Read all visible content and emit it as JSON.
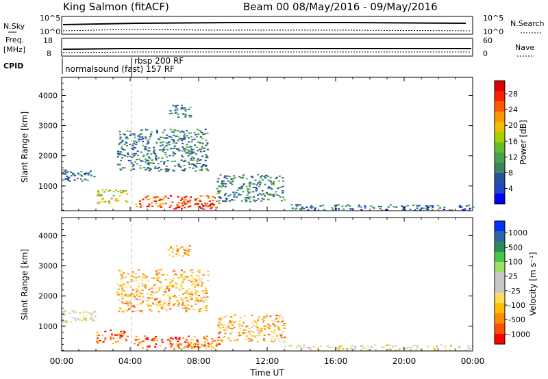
{
  "header": {
    "station": "King Salmon (fitACF)",
    "beam_info": "Beam 00  08/May/2016 - 09/May/2016"
  },
  "top_panels": {
    "nsky_label": "N.Sky",
    "nsearch_label": "N.Search",
    "noise_ticks_left": [
      "10^5",
      "10^0"
    ],
    "noise_ticks_right": [
      "10^5",
      "10^0"
    ],
    "freq_label_1": "Freq.",
    "freq_label_2": "[MHz]",
    "freq_ticks": [
      "18",
      "8"
    ],
    "nave_label": "Nave",
    "nave_ticks": [
      "60",
      "0"
    ],
    "cpid_label": "CPID",
    "cpid_1": "normalsound (fast) 157 RF",
    "cpid_2": "rbsp 200 RF"
  },
  "power_panel": {
    "ylabel": "Slant Range [km]",
    "y_ticks": [
      "4000",
      "3000",
      "2000",
      "1000"
    ],
    "colorbar_label": "Power [dB]",
    "colorbar_ticks": [
      "28",
      "24",
      "20",
      "16",
      "12",
      "8",
      "4"
    ],
    "colors": [
      "#0000ff",
      "#1e46c8",
      "#28509b",
      "#3c8264",
      "#46a050",
      "#64be28",
      "#aacd00",
      "#f0be00",
      "#ff9600",
      "#ff5a00",
      "#ff1e00",
      "#dc0000"
    ]
  },
  "velocity_panel": {
    "ylabel": "Slant Range [km]",
    "y_ticks": [
      "4000",
      "3000",
      "2000",
      "1000"
    ],
    "colorbar_label": "Velocity [m s⁻¹]",
    "colorbar_ticks": [
      "1000",
      "500",
      "100",
      "25",
      "-25",
      "-100",
      "-500",
      "-1000"
    ],
    "colors": [
      "#ff0000",
      "#ff5000",
      "#ff8c00",
      "#ffbe00",
      "#ffdc5a",
      "#c8c8c8",
      "#c8c8c8",
      "#9be164",
      "#46c846",
      "#2d8c5a",
      "#2d64aa",
      "#0032ff"
    ]
  },
  "x_axis": {
    "label": "Time UT",
    "ticks": [
      "00:00",
      "04:00",
      "08:00",
      "12:00",
      "16:00",
      "20:00",
      "00:00"
    ]
  },
  "chart_data": [
    {
      "type": "heatmap",
      "title": "Power",
      "xlabel": "Time UT",
      "ylabel": "Slant Range [km]",
      "xlim_hours": [
        0,
        24
      ],
      "ylim_km": [
        180,
        4600
      ],
      "colorbar": {
        "label": "Power [dB]",
        "range": [
          0,
          30
        ]
      },
      "echo_regions": [
        {
          "t0": 0.0,
          "t1": 2.0,
          "r0": 1150,
          "r1": 1550,
          "level": 0.25
        },
        {
          "t0": 2.0,
          "t1": 3.8,
          "r0": 450,
          "r1": 900,
          "level": 0.55
        },
        {
          "t0": 4.2,
          "t1": 9.2,
          "r0": 300,
          "r1": 700,
          "level": 0.8
        },
        {
          "t0": 6.5,
          "t1": 8.8,
          "r0": 250,
          "r1": 450,
          "level": 0.97
        },
        {
          "t0": 3.2,
          "t1": 8.5,
          "r0": 1500,
          "r1": 2900,
          "level": 0.28
        },
        {
          "t0": 6.0,
          "t1": 7.5,
          "r0": 3300,
          "r1": 3700,
          "level": 0.3
        },
        {
          "t0": 9.0,
          "t1": 13.0,
          "r0": 500,
          "r1": 1400,
          "level": 0.3
        },
        {
          "t0": 13.0,
          "t1": 24.0,
          "r0": 220,
          "r1": 400,
          "level": 0.22
        }
      ]
    },
    {
      "type": "heatmap",
      "title": "Velocity",
      "xlabel": "Time UT",
      "ylabel": "Slant Range [km]",
      "xlim_hours": [
        0,
        24
      ],
      "ylim_km": [
        180,
        4600
      ],
      "colorbar": {
        "label": "Velocity [m s⁻¹]",
        "range": [
          -1000,
          1000
        ]
      },
      "echo_regions": [
        {
          "t0": 0.0,
          "t1": 2.0,
          "r0": 1150,
          "r1": 1550,
          "level": 0.45
        },
        {
          "t0": 2.0,
          "t1": 3.8,
          "r0": 450,
          "r1": 900,
          "level": 0.15
        },
        {
          "t0": 4.2,
          "t1": 9.2,
          "r0": 300,
          "r1": 700,
          "level": 0.15
        },
        {
          "t0": 6.5,
          "t1": 8.8,
          "r0": 250,
          "r1": 450,
          "level": 0.25
        },
        {
          "t0": 3.2,
          "t1": 8.5,
          "r0": 1500,
          "r1": 2900,
          "level": 0.3
        },
        {
          "t0": 6.0,
          "t1": 7.5,
          "r0": 3300,
          "r1": 3700,
          "level": 0.3
        },
        {
          "t0": 9.0,
          "t1": 13.0,
          "r0": 500,
          "r1": 1400,
          "level": 0.3
        },
        {
          "t0": 13.0,
          "t1": 24.0,
          "r0": 220,
          "r1": 400,
          "level": 0.45
        }
      ]
    }
  ]
}
